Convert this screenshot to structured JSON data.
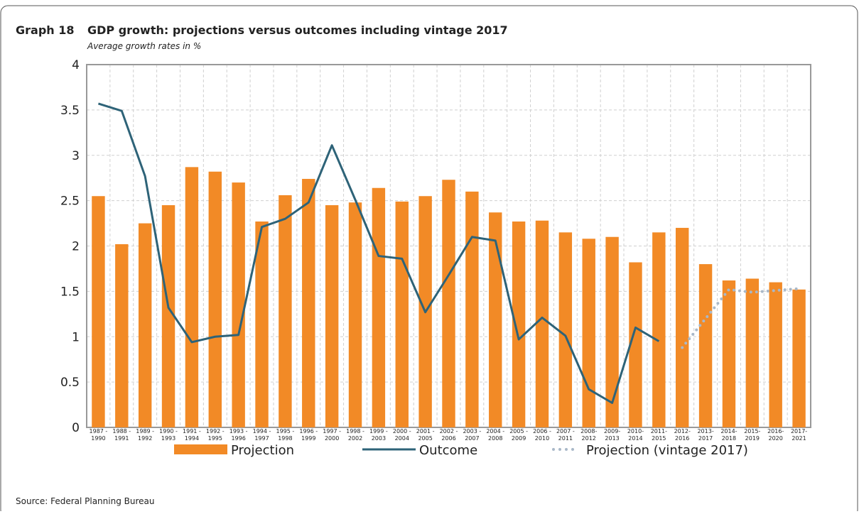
{
  "chart_data": {
    "type": "bar",
    "label": "Graph 18",
    "title": "GDP growth: projections versus outcomes including vintage 2017",
    "subtitle": "Average growth rates in %",
    "source": "Source: Federal Planning Bureau",
    "categories": [
      [
        "1987 -",
        "1990"
      ],
      [
        "1988 -",
        "1991"
      ],
      [
        "1989 -",
        "1992"
      ],
      [
        "1990 -",
        "1993"
      ],
      [
        "1991 -",
        "1994"
      ],
      [
        "1992 -",
        "1995"
      ],
      [
        "1993 -",
        "1996"
      ],
      [
        "1994 -",
        "1997"
      ],
      [
        "1995 -",
        "1998"
      ],
      [
        "1996 -",
        "1999"
      ],
      [
        "1997 -",
        "2000"
      ],
      [
        "1998 -",
        "2002"
      ],
      [
        "1999 -",
        "2003"
      ],
      [
        "2000 -",
        "2004"
      ],
      [
        "2001 -",
        "2005"
      ],
      [
        "2002 -",
        "2006"
      ],
      [
        "2003 -",
        "2007"
      ],
      [
        "2004 -",
        "2008"
      ],
      [
        "2005 -",
        "2009"
      ],
      [
        "2006 -",
        "2010"
      ],
      [
        "2007 -",
        "2011"
      ],
      [
        "2008-",
        "2012"
      ],
      [
        "2009-",
        "2013"
      ],
      [
        "2010-",
        "2014"
      ],
      [
        "2011-",
        "2015"
      ],
      [
        "2012-",
        "2016"
      ],
      [
        "2013-",
        "2017"
      ],
      [
        "2014-",
        "2018"
      ],
      [
        "2015-",
        "2019"
      ],
      [
        "2016-",
        "2020"
      ],
      [
        "2017-",
        "2021"
      ]
    ],
    "series": [
      {
        "name": "Projection",
        "type": "bar",
        "color": "#f28a26",
        "values": [
          2.55,
          2.02,
          2.25,
          2.45,
          2.87,
          2.82,
          2.7,
          2.27,
          2.56,
          2.74,
          2.45,
          2.48,
          2.64,
          2.49,
          2.55,
          2.73,
          2.6,
          2.37,
          2.27,
          2.28,
          2.15,
          2.08,
          2.1,
          1.82,
          2.15,
          2.2,
          1.8,
          1.62,
          1.64,
          1.6,
          1.52
        ]
      },
      {
        "name": "Outcome",
        "type": "line",
        "color": "#2e6378",
        "values": [
          3.57,
          3.49,
          2.77,
          1.32,
          0.94,
          1.0,
          1.02,
          2.21,
          2.3,
          2.48,
          3.11,
          2.51,
          1.89,
          1.86,
          1.27,
          1.68,
          2.1,
          2.06,
          0.97,
          1.21,
          1.01,
          0.42,
          0.27,
          1.1,
          0.95,
          null,
          null,
          null,
          null,
          null,
          null
        ]
      },
      {
        "name": "Projection (vintage 2017)",
        "type": "line",
        "dotted": true,
        "color": "#a9b8c8",
        "values": [
          null,
          null,
          null,
          null,
          null,
          null,
          null,
          null,
          null,
          null,
          null,
          null,
          null,
          null,
          null,
          null,
          null,
          null,
          null,
          null,
          null,
          null,
          null,
          null,
          null,
          0.88,
          1.2,
          1.52,
          1.49,
          1.51,
          1.53
        ]
      }
    ],
    "ylim": [
      0,
      4
    ],
    "yticks": [
      0,
      0.5,
      1,
      1.5,
      2,
      2.5,
      3,
      3.5,
      4
    ],
    "grid": true
  }
}
